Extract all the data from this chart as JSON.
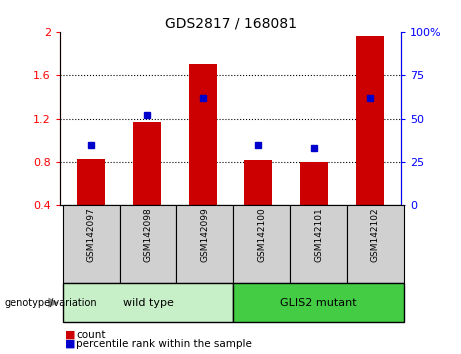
{
  "title": "GDS2817 / 168081",
  "samples": [
    "GSM142097",
    "GSM142098",
    "GSM142099",
    "GSM142100",
    "GSM142101",
    "GSM142102"
  ],
  "bar_values": [
    0.83,
    1.17,
    1.7,
    0.82,
    0.8,
    1.96
  ],
  "dot_values": [
    35,
    52,
    62,
    35,
    33,
    62
  ],
  "bar_color": "#CC0000",
  "dot_color": "#0000CC",
  "ylim_left": [
    0.4,
    2.0
  ],
  "ylim_right": [
    0,
    100
  ],
  "yticks_left": [
    0.4,
    0.8,
    1.2,
    1.6,
    2.0
  ],
  "ytick_labels_left": [
    "0.4",
    "0.8",
    "1.2",
    "1.6",
    "2"
  ],
  "yticks_right": [
    0,
    25,
    50,
    75,
    100
  ],
  "ytick_labels_right": [
    "0",
    "25",
    "50",
    "75",
    "100%"
  ],
  "hlines": [
    0.8,
    1.2,
    1.6
  ],
  "legend_items": [
    "count",
    "percentile rank within the sample"
  ],
  "genotype_label": "genotype/variation",
  "bar_width": 0.5,
  "group_wt": [
    0,
    2
  ],
  "group_mut": [
    3,
    5
  ],
  "group_wt_label": "wild type",
  "group_mut_label": "GLIS2 mutant",
  "color_wt": "#C8F0C8",
  "color_mut": "#44CC44",
  "color_gray_box": "#D0D0D0"
}
